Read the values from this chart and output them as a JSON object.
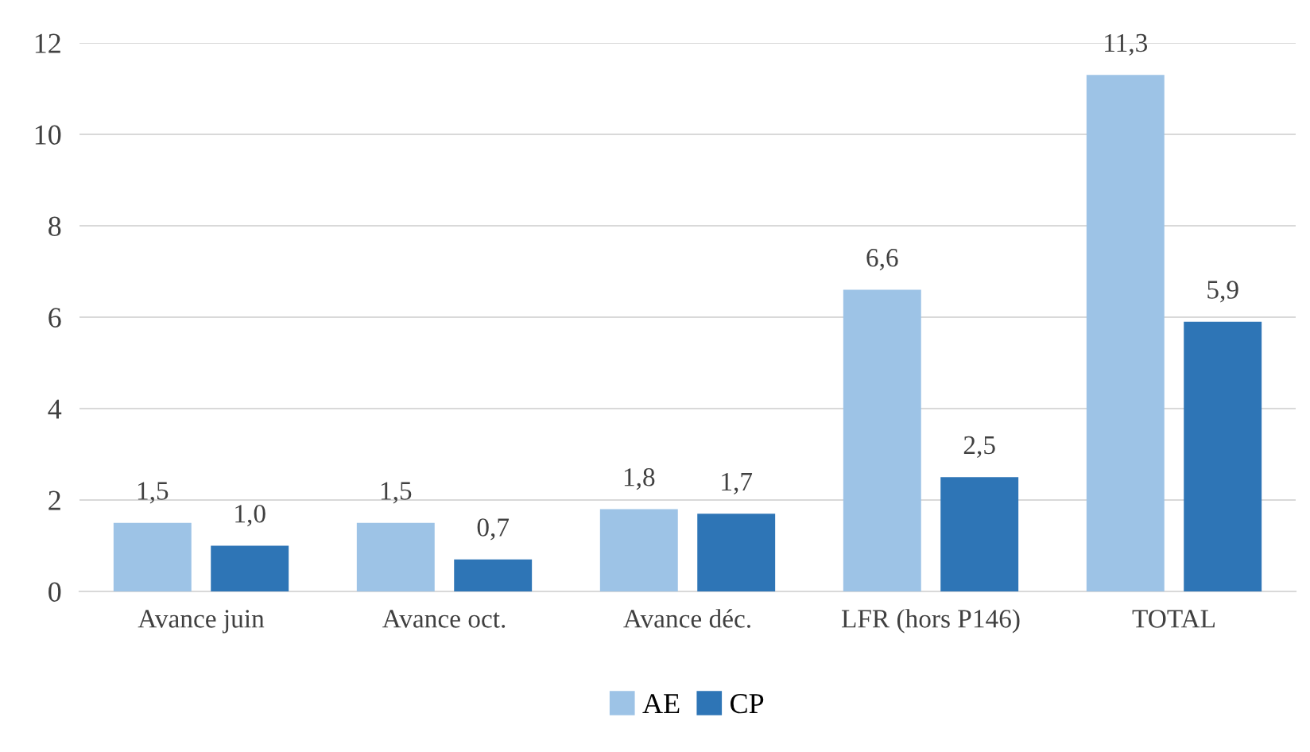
{
  "chart_data": {
    "type": "bar",
    "categories": [
      "Avance juin",
      "Avance oct.",
      "Avance déc.",
      "LFR (hors P146)",
      "TOTAL"
    ],
    "series": [
      {
        "name": "AE",
        "color": "#9dc3e6",
        "values": [
          1.5,
          1.5,
          1.8,
          6.6,
          11.3
        ],
        "value_labels": [
          "1,5",
          "1,5",
          "1,8",
          "6,6",
          "11,3"
        ]
      },
      {
        "name": "CP",
        "color": "#2e75b6",
        "values": [
          1.0,
          0.7,
          1.7,
          2.5,
          5.9
        ],
        "value_labels": [
          "1,0",
          "0,7",
          "1,7",
          "2,5",
          "5,9"
        ]
      }
    ],
    "ylim": [
      0,
      12
    ],
    "yticks": [
      0,
      2,
      4,
      6,
      8,
      10,
      12
    ],
    "grid": "y",
    "legend": "bottom"
  }
}
